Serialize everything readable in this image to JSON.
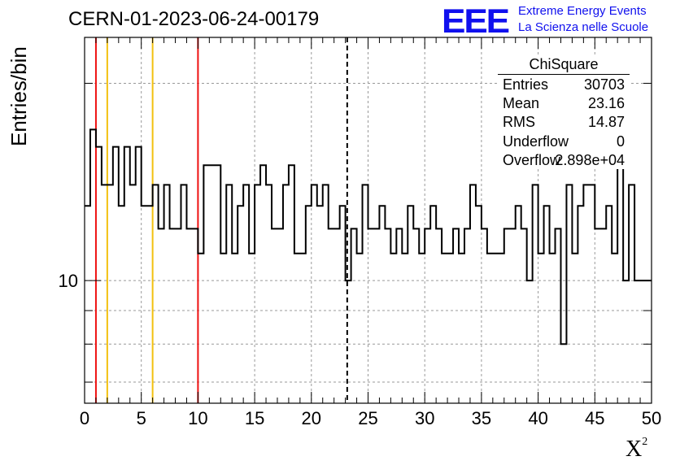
{
  "header": {
    "title": "CERN-01-2023-06-24-00179",
    "logo_text": "EEE",
    "logo_line1": "Extreme Energy Events",
    "logo_line2": "La Scienza nelle Scuole"
  },
  "stats_box": {
    "title": "ChiSquare",
    "rows": [
      {
        "key": "Entries",
        "value": "30703"
      },
      {
        "key": "Mean",
        "value": "23.16"
      },
      {
        "key": "RMS",
        "value": "14.87"
      },
      {
        "key": "Underflow",
        "value": "0"
      },
      {
        "key": "Overflow",
        "value": "2.898e+04"
      }
    ]
  },
  "chart_data": {
    "type": "histogram",
    "title": "CERN-01-2023-06-24-00179",
    "xlabel": "X²",
    "ylabel": "Entries/bin",
    "xlim": [
      0,
      50
    ],
    "ylim": [
      6.5,
      23.5
    ],
    "yscale": "log",
    "grid": true,
    "x_ticks": [
      0,
      5,
      10,
      15,
      20,
      25,
      30,
      35,
      40,
      45,
      50
    ],
    "y_tick_labels": [
      {
        "value": 10,
        "label": "10"
      }
    ],
    "bin_width": 0.5,
    "bin_edges_start": 0,
    "values": [
      13,
      17,
      16,
      14,
      14,
      16,
      13,
      16,
      14,
      16,
      13,
      13,
      14,
      12,
      14,
      12,
      12,
      14,
      12,
      12,
      11,
      15,
      15,
      15,
      11,
      14,
      11,
      13,
      14,
      11,
      14,
      15,
      14,
      12,
      12,
      14,
      15,
      11,
      11,
      13,
      14,
      13,
      14,
      12,
      12,
      13,
      10,
      12,
      11,
      14,
      12,
      12,
      13,
      12,
      11,
      12,
      11,
      13,
      12,
      11,
      12,
      13,
      12,
      11,
      11,
      12,
      11,
      12,
      14,
      13,
      12,
      11,
      11,
      11,
      12,
      12,
      13,
      12,
      10,
      14,
      11,
      13,
      11,
      12,
      8,
      14,
      11,
      13,
      14,
      14,
      12,
      12,
      13,
      11,
      15,
      10,
      14,
      10,
      10,
      10
    ],
    "vertical_lines": [
      {
        "x": 1,
        "color": "#ee1111",
        "style": "solid"
      },
      {
        "x": 2,
        "color": "#f2c00f",
        "style": "solid"
      },
      {
        "x": 6,
        "color": "#f2c00f",
        "style": "solid"
      },
      {
        "x": 10,
        "color": "#ee1111",
        "style": "solid"
      },
      {
        "x": 23.16,
        "color": "#000000",
        "style": "dashed"
      }
    ],
    "line_color": "#000000"
  }
}
